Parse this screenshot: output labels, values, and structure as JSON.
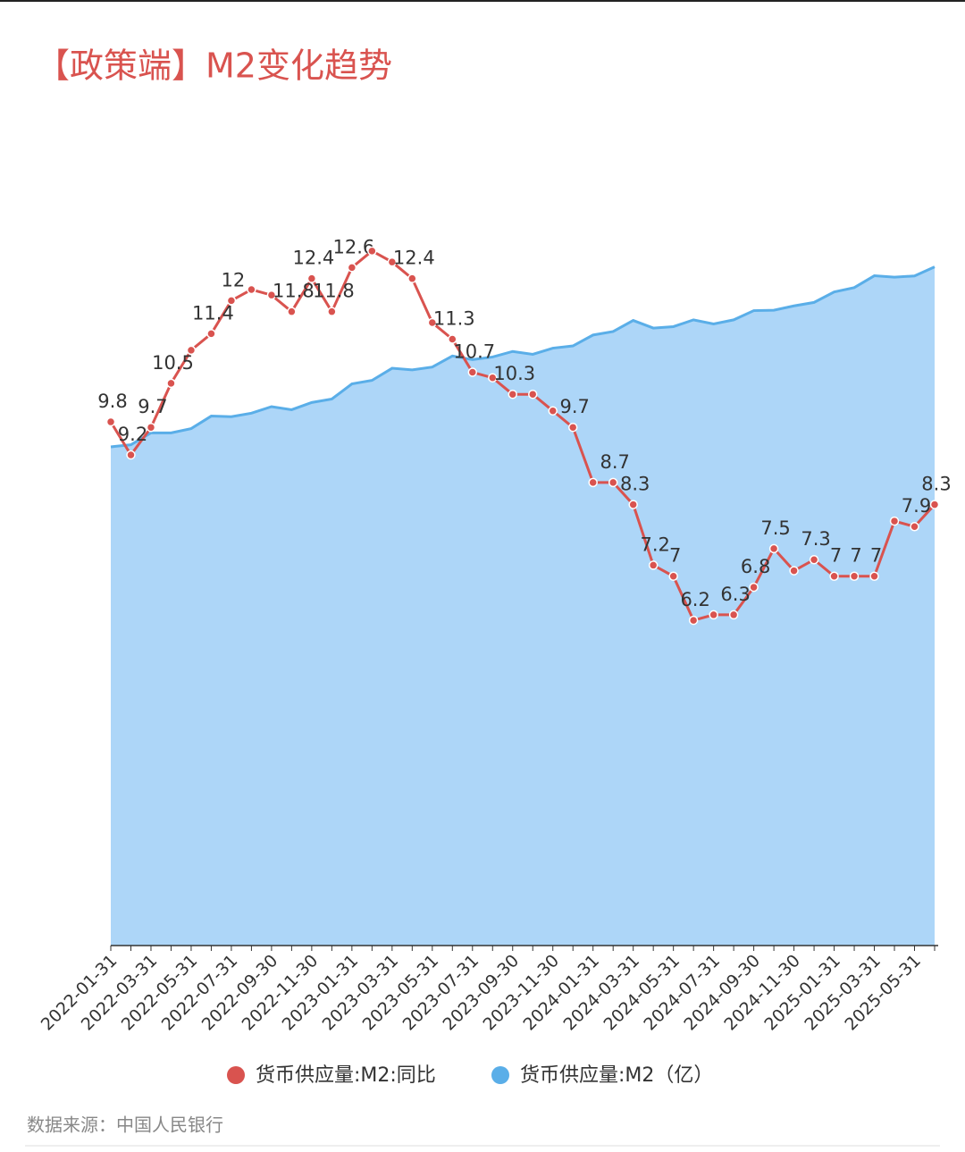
{
  "title": "【政策端】M2变化趋势",
  "source": "数据来源：中国人民银行",
  "chart_data": {
    "type": "line-area",
    "categories": [
      "2022-01-31",
      null,
      "2022-03-31",
      null,
      "2022-05-31",
      null,
      "2022-07-31",
      null,
      "2022-09-30",
      null,
      "2022-11-30",
      null,
      "2023-01-31",
      null,
      "2023-03-31",
      null,
      "2023-05-31",
      null,
      "2023-07-31",
      null,
      "2023-09-30",
      null,
      "2023-11-30",
      null,
      "2024-01-31",
      null,
      "2024-03-31",
      null,
      "2024-05-31",
      null,
      "2024-07-31",
      null,
      "2024-09-30",
      null,
      "2024-11-30",
      null,
      "2025-01-31",
      null,
      "2025-03-31",
      null,
      "2025-05-31",
      null
    ],
    "ylim": [
      0,
      3520000
    ],
    "y2lim": [
      0.3,
      13.4
    ],
    "series": [
      {
        "name": "货币供应量:M2:同比",
        "color": "#d9534f",
        "axis": "y2",
        "kind": "line",
        "values": [
          9.8,
          9.2,
          9.7,
          10.5,
          11.1,
          11.4,
          12.0,
          12.2,
          12.1,
          11.8,
          12.4,
          11.8,
          12.6,
          12.9,
          12.7,
          12.4,
          11.6,
          11.3,
          10.7,
          10.6,
          10.3,
          10.3,
          10.0,
          9.7,
          8.7,
          8.7,
          8.3,
          7.2,
          7.0,
          6.2,
          6.3,
          6.3,
          6.8,
          7.5,
          7.1,
          7.3,
          7.0,
          7.0,
          7.0,
          8.0,
          7.9,
          8.3
        ],
        "value_labels": [
          "9.8",
          "9.2",
          "9.7",
          "10.5",
          null,
          "11.4",
          "12",
          null,
          null,
          "11.8",
          "12.4",
          "11.8",
          "12.6",
          null,
          null,
          "12.4",
          null,
          "11.3",
          "10.7",
          null,
          "10.3",
          null,
          null,
          "9.7",
          null,
          "8.7",
          "8.3",
          "7.2",
          "7",
          "6.2",
          null,
          "6.3",
          "6.8",
          "7.5",
          null,
          "7.3",
          "7",
          "7",
          "7",
          null,
          "7.9",
          "8.3"
        ]
      },
      {
        "name": "货币供应量:M2（亿）",
        "color": "#5aaee8",
        "fill": "#add6f8",
        "kind": "area",
        "values": [
          2431000,
          2441000,
          2499000,
          2499000,
          2520000,
          2581000,
          2578000,
          2595000,
          2627000,
          2612000,
          2647000,
          2664000,
          2738000,
          2755000,
          2814000,
          2806000,
          2820000,
          2874000,
          2856000,
          2869000,
          2896000,
          2882000,
          2912000,
          2923000,
          2976000,
          2993000,
          3047000,
          3010000,
          3017000,
          3050000,
          3030000,
          3050000,
          3095000,
          3097000,
          3118000,
          3135000,
          3186000,
          3207000,
          3265000,
          3258000,
          3264000,
          3308000
        ]
      }
    ]
  }
}
